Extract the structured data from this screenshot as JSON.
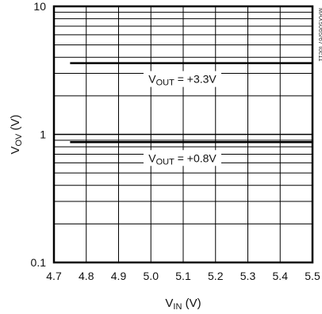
{
  "chart_data": {
    "type": "line",
    "title": "",
    "xlabel": {
      "main": "V",
      "sub": "IN",
      "unit": " (V)"
    },
    "ylabel": {
      "main": "V",
      "sub": "OV",
      "unit": " (V)"
    },
    "x_scale": "linear",
    "y_scale": "log",
    "xlim": [
      4.7,
      5.5
    ],
    "ylim": [
      0.1,
      10
    ],
    "x_ticks": [
      "4.7",
      "4.8",
      "4.9",
      "5.0",
      "5.1",
      "5.2",
      "5.3",
      "5.4",
      "5.5"
    ],
    "y_ticks": [
      "0.1",
      "1",
      "10"
    ],
    "grid": true,
    "series": [
      {
        "label_main": "V",
        "label_sub": "OUT",
        "label_rest": " = +3.3V",
        "x": [
          4.75,
          5.5
        ],
        "y": [
          3.6,
          3.6
        ]
      },
      {
        "label_main": "V",
        "label_sub": "OUT",
        "label_rest": " = +0.8V",
        "x": [
          4.75,
          5.5
        ],
        "y": [
          0.87,
          0.87
        ]
      }
    ],
    "figure_id": "MAX5065/67 toc11",
    "line_color": "#000000"
  }
}
